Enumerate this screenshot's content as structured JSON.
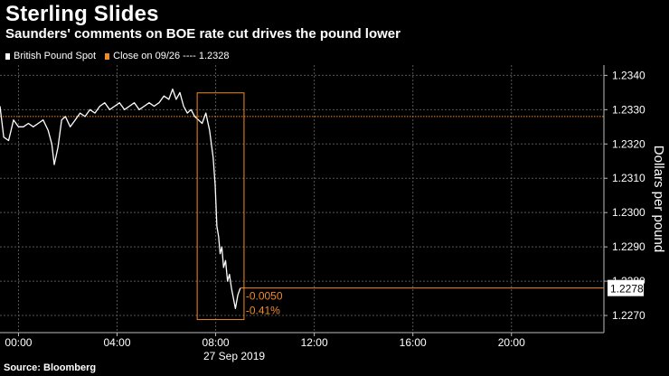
{
  "header": {
    "title": "Sterling Slides",
    "subtitle": "Saunders' comments on BOE rate cut drives the pound lower"
  },
  "legend": {
    "series_label": "British Pound Spot",
    "close_label": "Close on 09/26 ---- 1.2328"
  },
  "footer": {
    "source": "Source: Bloomberg"
  },
  "colors": {
    "series": "#ffffff",
    "accent": "#f08a24",
    "grid": "#555555",
    "background": "#000000"
  },
  "chart_data": {
    "type": "line",
    "title": "Sterling Slides",
    "subtitle": "Saunders' comments on BOE rate cut drives the pound lower",
    "xlabel": "27 Sep 2019",
    "ylabel": "Dollars per pound",
    "xlim": [
      -0.75,
      23.75
    ],
    "ylim": [
      1.2265,
      1.2343
    ],
    "x_ticks": [
      0,
      4,
      8,
      12,
      16,
      20
    ],
    "x_tick_labels": [
      "00:00",
      "04:00",
      "08:00",
      "12:00",
      "16:00",
      "20:00"
    ],
    "y_ticks": [
      1.227,
      1.228,
      1.229,
      1.23,
      1.231,
      1.232,
      1.233,
      1.234
    ],
    "y_tick_labels": [
      "1.2270",
      "1.2280",
      "1.2290",
      "1.2300",
      "1.2310",
      "1.2320",
      "1.2330",
      "1.2340"
    ],
    "grid": true,
    "legend_position": "top-left",
    "series": [
      {
        "name": "British Pound Spot",
        "x": [
          -0.75,
          -0.6,
          -0.4,
          -0.2,
          0.0,
          0.2,
          0.4,
          0.6,
          0.8,
          1.0,
          1.2,
          1.35,
          1.45,
          1.6,
          1.75,
          1.9,
          2.1,
          2.3,
          2.5,
          2.7,
          2.9,
          3.1,
          3.3,
          3.5,
          3.7,
          3.9,
          4.1,
          4.3,
          4.5,
          4.7,
          4.9,
          5.1,
          5.3,
          5.5,
          5.7,
          5.9,
          6.1,
          6.25,
          6.4,
          6.55,
          6.7,
          6.85,
          7.0,
          7.15,
          7.3,
          7.45,
          7.6,
          7.75,
          7.9,
          7.98,
          8.05,
          8.12,
          8.18,
          8.25,
          8.32,
          8.4,
          8.48,
          8.56,
          8.64,
          8.72,
          8.8,
          8.9,
          9.0
        ],
        "y": [
          1.2331,
          1.2322,
          1.2321,
          1.2327,
          1.2325,
          1.2325,
          1.2326,
          1.2325,
          1.2326,
          1.2327,
          1.2324,
          1.232,
          1.2314,
          1.2319,
          1.2327,
          1.2328,
          1.2325,
          1.2327,
          1.2329,
          1.2328,
          1.233,
          1.2329,
          1.2331,
          1.2332,
          1.233,
          1.2331,
          1.2332,
          1.233,
          1.2331,
          1.2332,
          1.233,
          1.2331,
          1.2332,
          1.2331,
          1.2332,
          1.2334,
          1.2333,
          1.2336,
          1.2333,
          1.2335,
          1.2331,
          1.2329,
          1.233,
          1.2328,
          1.2327,
          1.2326,
          1.2329,
          1.2324,
          1.2316,
          1.2308,
          1.2296,
          1.2293,
          1.2288,
          1.229,
          1.2284,
          1.2286,
          1.228,
          1.2282,
          1.2278,
          1.2275,
          1.2272,
          1.2276,
          1.2278
        ]
      }
    ],
    "reference_line": {
      "label": "Close on 09/26",
      "value": 1.2328
    },
    "last_value_label": "1.2278",
    "annotation": {
      "change": "-0.0050",
      "change_pct": "-0.41%",
      "value": 1.2278,
      "box_x": [
        7.25,
        9.15
      ],
      "box_y": [
        1.22688,
        1.23349
      ]
    }
  }
}
